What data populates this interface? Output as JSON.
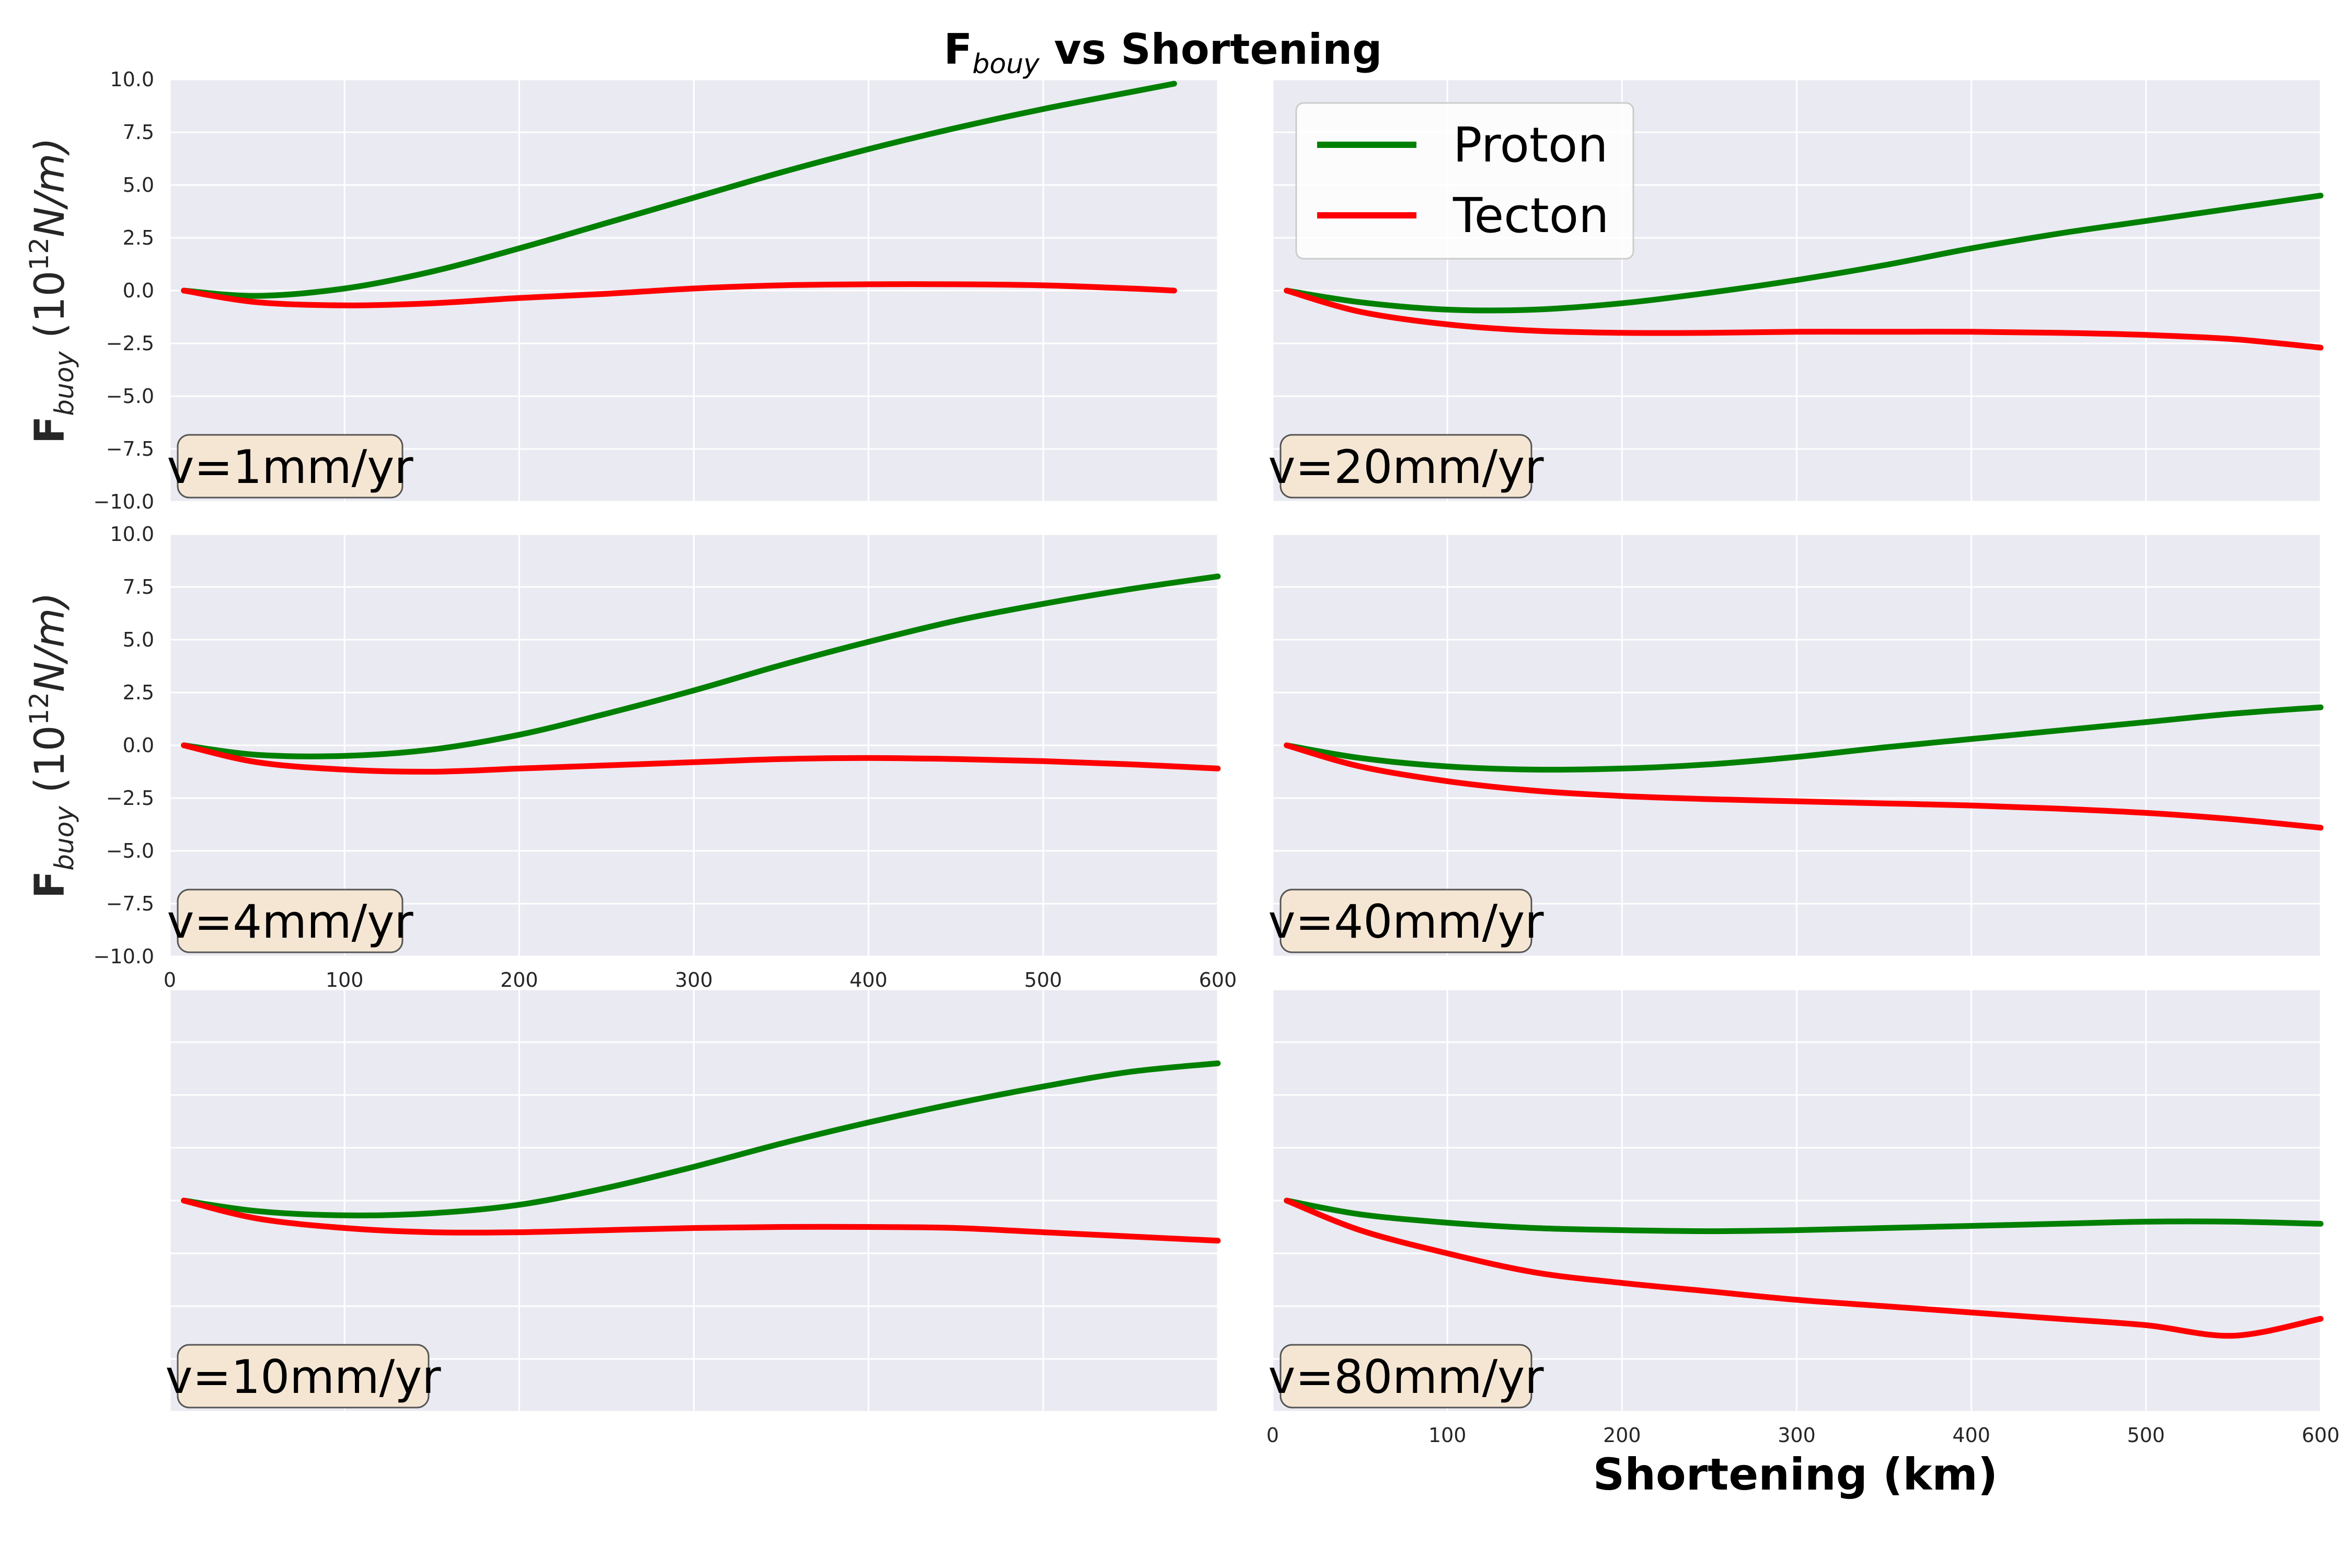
{
  "figure": {
    "title_main": "F",
    "title_sub": "bouy",
    "title_rest": " vs Shortening",
    "ylabel_main": "F",
    "ylabel_sub": "buoy",
    "ylabel_unit_open": " (10",
    "ylabel_unit_exp": "12",
    "ylabel_unit_close": "N/m)",
    "xlabel": "Shortening (km)",
    "colors": {
      "panel_bg": "#eaeaf2",
      "grid": "#ffffff",
      "proton": "#008000",
      "tecton": "#ff0000",
      "label_box": "#f5e6d3"
    }
  },
  "chart_data": [
    {
      "type": "line",
      "panel": "v=1mm/yr",
      "xlim": [
        0,
        600
      ],
      "ylim": [
        -10,
        10
      ],
      "yticks": [
        -10,
        -7.5,
        -5,
        -2.5,
        0,
        2.5,
        5,
        7.5,
        10
      ],
      "ytick_labels": [
        "−10.0",
        "−7.5",
        "−5.0",
        "−2.5",
        "0.0",
        "2.5",
        "5.0",
        "7.5",
        "10.0"
      ],
      "xticks": [
        0,
        100,
        200,
        300,
        400,
        500,
        600
      ],
      "xtick_labels": [],
      "series": [
        {
          "name": "Proton",
          "color": "#008000",
          "x": [
            8,
            50,
            100,
            150,
            200,
            250,
            300,
            350,
            400,
            450,
            500,
            550,
            575
          ],
          "y": [
            0,
            -0.25,
            0.1,
            0.9,
            2.0,
            3.2,
            4.4,
            5.6,
            6.7,
            7.7,
            8.6,
            9.4,
            9.8
          ]
        },
        {
          "name": "Tecton",
          "color": "#ff0000",
          "x": [
            8,
            50,
            100,
            150,
            200,
            250,
            300,
            350,
            400,
            450,
            500,
            550,
            575
          ],
          "y": [
            0,
            -0.55,
            -0.7,
            -0.6,
            -0.35,
            -0.15,
            0.1,
            0.25,
            0.3,
            0.3,
            0.25,
            0.1,
            0.0
          ]
        }
      ]
    },
    {
      "type": "line",
      "panel": "v=20mm/yr",
      "xlim": [
        0,
        600
      ],
      "ylim": [
        -10,
        10
      ],
      "yticks": [
        -10,
        -7.5,
        -5,
        -2.5,
        0,
        2.5,
        5,
        7.5,
        10
      ],
      "ytick_labels": [],
      "xticks": [
        0,
        100,
        200,
        300,
        400,
        500,
        600
      ],
      "xtick_labels": [],
      "legend": {
        "placement": "top-left",
        "entries": [
          "Proton",
          "Tecton"
        ]
      },
      "series": [
        {
          "name": "Proton",
          "color": "#008000",
          "x": [
            8,
            50,
            100,
            150,
            200,
            250,
            300,
            350,
            400,
            450,
            500,
            550,
            600
          ],
          "y": [
            0,
            -0.55,
            -0.9,
            -0.9,
            -0.6,
            -0.1,
            0.5,
            1.2,
            2.0,
            2.7,
            3.3,
            3.9,
            4.5
          ]
        },
        {
          "name": "Tecton",
          "color": "#ff0000",
          "x": [
            8,
            50,
            100,
            150,
            200,
            250,
            300,
            350,
            400,
            450,
            500,
            550,
            600
          ],
          "y": [
            0,
            -1.0,
            -1.6,
            -1.9,
            -2.0,
            -2.0,
            -1.95,
            -1.95,
            -1.95,
            -2.0,
            -2.1,
            -2.3,
            -2.7
          ]
        }
      ]
    },
    {
      "type": "line",
      "panel": "v=4mm/yr",
      "xlim": [
        0,
        600
      ],
      "ylim": [
        -10,
        10
      ],
      "yticks": [
        -10,
        -7.5,
        -5,
        -2.5,
        0,
        2.5,
        5,
        7.5,
        10
      ],
      "ytick_labels": [
        "−10.0",
        "−7.5",
        "−5.0",
        "−2.5",
        "0.0",
        "2.5",
        "5.0",
        "7.5",
        "10.0"
      ],
      "xticks": [
        0,
        100,
        200,
        300,
        400,
        500,
        600
      ],
      "xtick_labels": [
        "0",
        "100",
        "200",
        "300",
        "400",
        "500",
        "600"
      ],
      "series": [
        {
          "name": "Proton",
          "color": "#008000",
          "x": [
            8,
            50,
            100,
            150,
            200,
            250,
            300,
            350,
            400,
            450,
            500,
            550,
            600
          ],
          "y": [
            0,
            -0.45,
            -0.5,
            -0.2,
            0.5,
            1.5,
            2.6,
            3.8,
            4.9,
            5.9,
            6.7,
            7.4,
            8.0
          ]
        },
        {
          "name": "Tecton",
          "color": "#ff0000",
          "x": [
            8,
            50,
            100,
            150,
            200,
            250,
            300,
            350,
            400,
            450,
            500,
            550,
            600
          ],
          "y": [
            0,
            -0.8,
            -1.15,
            -1.25,
            -1.1,
            -0.95,
            -0.8,
            -0.65,
            -0.6,
            -0.65,
            -0.75,
            -0.9,
            -1.1
          ]
        }
      ]
    },
    {
      "type": "line",
      "panel": "v=40mm/yr",
      "xlim": [
        0,
        600
      ],
      "ylim": [
        -10,
        10
      ],
      "yticks": [
        -10,
        -7.5,
        -5,
        -2.5,
        0,
        2.5,
        5,
        7.5,
        10
      ],
      "ytick_labels": [],
      "xticks": [
        0,
        100,
        200,
        300,
        400,
        500,
        600
      ],
      "xtick_labels": [],
      "series": [
        {
          "name": "Proton",
          "color": "#008000",
          "x": [
            8,
            50,
            100,
            150,
            200,
            250,
            300,
            350,
            400,
            450,
            500,
            550,
            600
          ],
          "y": [
            0,
            -0.6,
            -1.0,
            -1.15,
            -1.1,
            -0.9,
            -0.55,
            -0.1,
            0.3,
            0.7,
            1.1,
            1.5,
            1.8
          ]
        },
        {
          "name": "Tecton",
          "color": "#ff0000",
          "x": [
            8,
            50,
            100,
            150,
            200,
            250,
            300,
            350,
            400,
            450,
            500,
            550,
            600
          ],
          "y": [
            0,
            -1.0,
            -1.7,
            -2.15,
            -2.4,
            -2.55,
            -2.65,
            -2.75,
            -2.85,
            -3.0,
            -3.2,
            -3.5,
            -3.9
          ]
        }
      ]
    },
    {
      "type": "line",
      "panel": "v=10mm/yr",
      "xlim": [
        0,
        600
      ],
      "ylim": [
        -10,
        10
      ],
      "yticks": [
        -10,
        -7.5,
        -5,
        -2.5,
        0,
        2.5,
        5,
        7.5,
        10
      ],
      "ytick_labels": [],
      "xticks": [
        0,
        100,
        200,
        300,
        400,
        500,
        600
      ],
      "xtick_labels": [],
      "series": [
        {
          "name": "Proton",
          "color": "#008000",
          "x": [
            8,
            50,
            100,
            150,
            200,
            250,
            300,
            350,
            400,
            450,
            500,
            550,
            600
          ],
          "y": [
            0,
            -0.5,
            -0.7,
            -0.6,
            -0.2,
            0.6,
            1.6,
            2.7,
            3.7,
            4.6,
            5.4,
            6.1,
            6.5
          ]
        },
        {
          "name": "Tecton",
          "color": "#ff0000",
          "x": [
            8,
            50,
            100,
            150,
            200,
            250,
            300,
            350,
            400,
            450,
            500,
            550,
            600
          ],
          "y": [
            0,
            -0.85,
            -1.3,
            -1.5,
            -1.5,
            -1.4,
            -1.3,
            -1.25,
            -1.25,
            -1.3,
            -1.5,
            -1.7,
            -1.9
          ]
        }
      ]
    },
    {
      "type": "line",
      "panel": "v=80mm/yr",
      "xlim": [
        0,
        600
      ],
      "ylim": [
        -10,
        10
      ],
      "yticks": [
        -10,
        -7.5,
        -5,
        -2.5,
        0,
        2.5,
        5,
        7.5,
        10
      ],
      "ytick_labels": [],
      "xticks": [
        0,
        100,
        200,
        300,
        400,
        500,
        600
      ],
      "xtick_labels": [
        "0",
        "100",
        "200",
        "300",
        "400",
        "500",
        "600"
      ],
      "series": [
        {
          "name": "Proton",
          "color": "#008000",
          "x": [
            8,
            50,
            100,
            150,
            200,
            250,
            300,
            350,
            400,
            450,
            500,
            550,
            600
          ],
          "y": [
            0,
            -0.65,
            -1.05,
            -1.3,
            -1.4,
            -1.45,
            -1.4,
            -1.3,
            -1.2,
            -1.1,
            -1.0,
            -1.0,
            -1.1
          ]
        },
        {
          "name": "Tecton",
          "color": "#ff0000",
          "x": [
            8,
            50,
            100,
            150,
            200,
            250,
            300,
            350,
            400,
            450,
            500,
            550,
            600
          ],
          "y": [
            0,
            -1.4,
            -2.5,
            -3.4,
            -3.9,
            -4.3,
            -4.7,
            -5.0,
            -5.3,
            -5.6,
            -5.9,
            -6.4,
            -5.6
          ]
        }
      ]
    }
  ]
}
